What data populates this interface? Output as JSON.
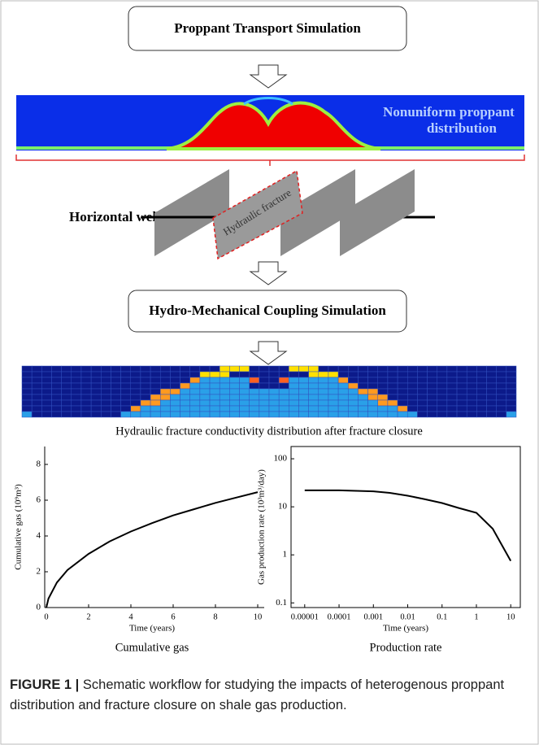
{
  "boxes": [
    "Proppant Transport Simulation",
    "Hydro-Mechanical Coupling Simulation"
  ],
  "simulation_label": [
    "Nonuniform proppant",
    "distribution"
  ],
  "well_label": "Horizontal well",
  "fracture_label": "Hydraulic fracture",
  "conductivity_caption": "Hydraulic fracture conductivity distribution after fracture closure",
  "chart_data": [
    {
      "type": "line",
      "caption": "Cumulative gas",
      "xlabel": "Time (years)",
      "ylabel": "Cumulative gas (10⁹m³)",
      "x": [
        0,
        0.1,
        0.5,
        1,
        2,
        3,
        4,
        5,
        6,
        7,
        8,
        9,
        10
      ],
      "series": [
        {
          "color": "#000000",
          "values": [
            0,
            0.5,
            1.4,
            2.1,
            3.0,
            3.7,
            4.25,
            4.72,
            5.15,
            5.5,
            5.85,
            6.15,
            6.45
          ]
        }
      ],
      "xlim": [
        0,
        10
      ],
      "ylim": [
        0,
        9
      ],
      "xticks": [
        0,
        2,
        4,
        6,
        8,
        10
      ],
      "yticks": [
        0,
        2,
        4,
        6,
        8
      ],
      "frame": false
    },
    {
      "type": "line",
      "caption": "Production rate",
      "xlabel": "Time (years)",
      "ylabel": "Gas production rate (10³m³/day)",
      "x": [
        1e-05,
        0.0001,
        0.001,
        0.003,
        0.01,
        0.03,
        0.1,
        0.3,
        1,
        3,
        10
      ],
      "series": [
        {
          "color": "#000000",
          "values": [
            22,
            22,
            21,
            19.5,
            17,
            14.5,
            12,
            9.5,
            7.5,
            3.5,
            0.75
          ]
        }
      ],
      "xscale": "log",
      "yscale": "log",
      "xlim": [
        4e-06,
        19
      ],
      "ylim": [
        0.08,
        180
      ],
      "xticks": [
        1e-05,
        0.0001,
        0.001,
        0.01,
        0.1,
        1,
        10
      ],
      "yticks": [
        0.1,
        1,
        10,
        100
      ],
      "frame": true
    }
  ],
  "figure_caption": {
    "label": "FIGURE 1 |",
    "text": "Schematic workflow for studying the impacts of heterogenous proppant distribution and fracture closure on shale gas production."
  }
}
